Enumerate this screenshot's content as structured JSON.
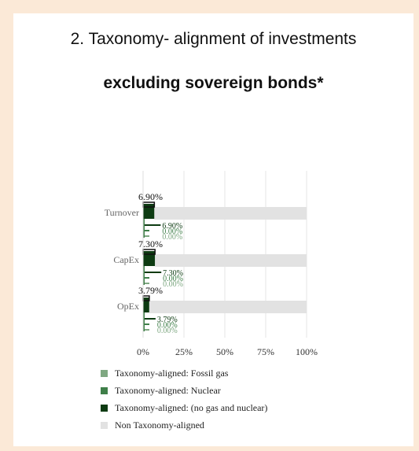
{
  "page": {
    "title": "2. Taxonomy- alignment of investments",
    "subtitle": "excluding sovereign bonds*"
  },
  "colors": {
    "background": "#fbe9d7",
    "card": "#ffffff",
    "fossil_gas": "#7fa882",
    "nuclear": "#3f7f49",
    "no_gas_nuclear": "#0d3b12",
    "non_aligned": "#e2e2e2"
  },
  "chart_data": {
    "type": "bar",
    "orientation": "horizontal",
    "categories": [
      "Turnover",
      "CapEx",
      "OpEx"
    ],
    "series": [
      {
        "name": "Taxonomy-aligned: Fossil gas",
        "values": [
          0.0,
          0.0,
          0.0
        ],
        "color": "#7fa882"
      },
      {
        "name": "Taxonomy-aligned: Nuclear",
        "values": [
          0.0,
          0.0,
          0.0
        ],
        "color": "#3f7f49"
      },
      {
        "name": "Taxonomy-aligned: (no gas and nuclear)",
        "values": [
          6.9,
          7.3,
          3.79
        ],
        "color": "#0d3b12"
      },
      {
        "name": "Non Taxonomy-aligned",
        "values": [
          93.1,
          92.7,
          96.21
        ],
        "color": "#e2e2e2"
      }
    ],
    "total_labels": [
      "6.90%",
      "7.30%",
      "3.79%"
    ],
    "breakdown_labels": [
      [
        "6.90%",
        "0.00%",
        "0.00%"
      ],
      [
        "7.30%",
        "0.00%",
        "0.00%"
      ],
      [
        "3.79%",
        "0.00%",
        "0.00%"
      ]
    ],
    "x_ticks": [
      "0%",
      "25%",
      "50%",
      "75%",
      "100%"
    ],
    "xlim": [
      0,
      100
    ],
    "grid": true,
    "legend_position": "bottom"
  },
  "legend": [
    {
      "label": "Taxonomy-aligned: Fossil gas",
      "color": "#7fa882"
    },
    {
      "label": "Taxonomy-aligned: Nuclear",
      "color": "#3f7f49"
    },
    {
      "label": "Taxonomy-aligned: (no gas and nuclear)",
      "color": "#0d3b12"
    },
    {
      "label": "Non Taxonomy-aligned",
      "color": "#e2e2e2"
    }
  ]
}
